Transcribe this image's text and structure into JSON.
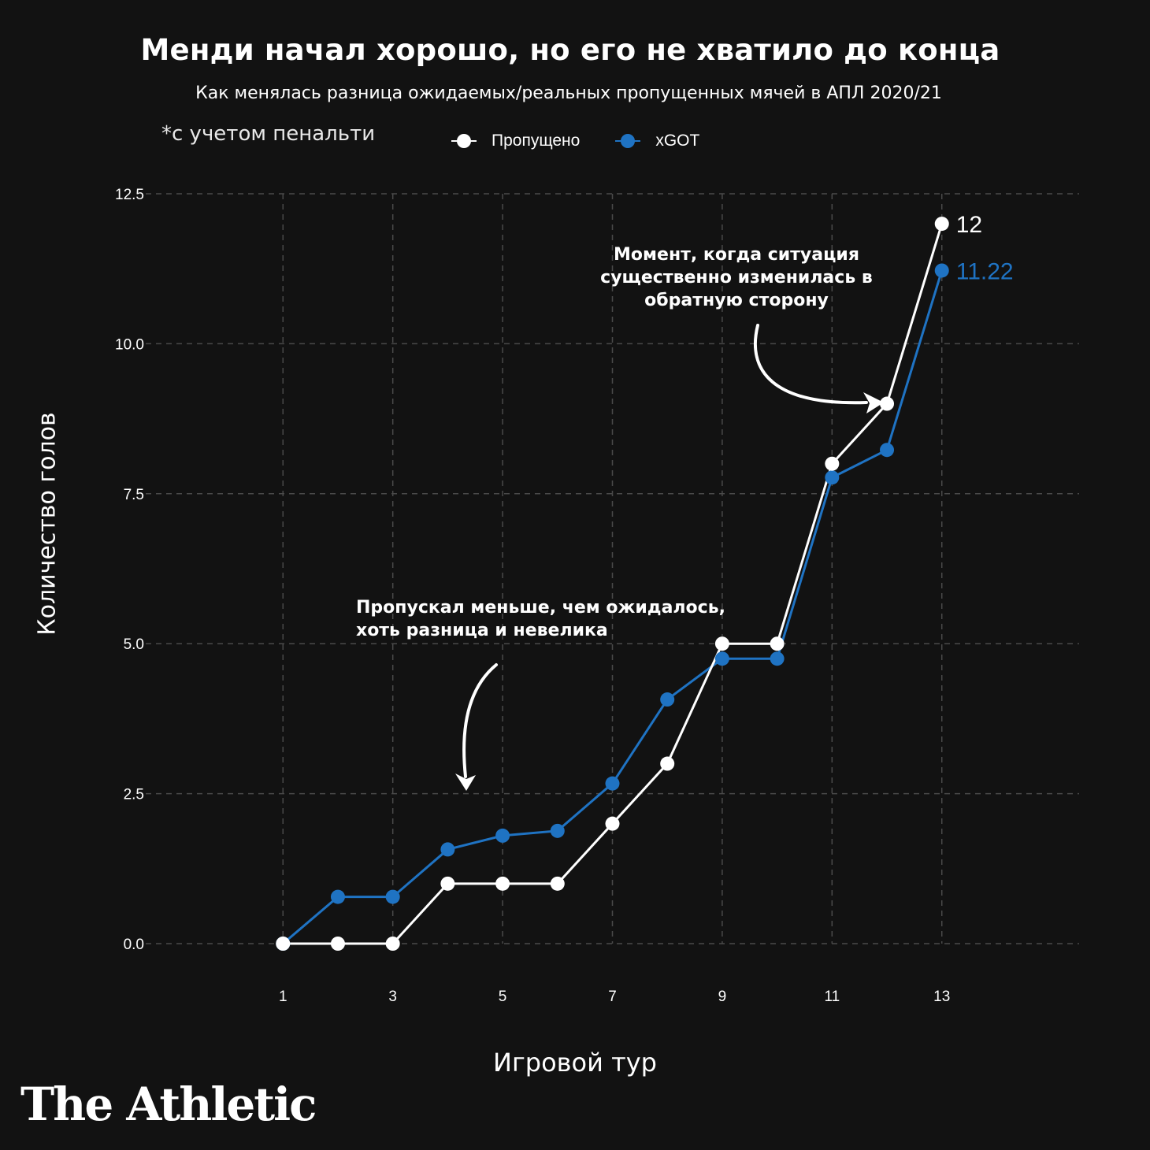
{
  "chart_data": {
    "type": "line",
    "title": "Менди начал хорошо, но его не хватило до конца",
    "subtitle": "Как менялась разница ожидаемых/реальных пропущенных мячей в АПЛ 2020/21",
    "note": "*с учетом пенальти",
    "xlabel": "Игровой тур",
    "ylabel": "Количество голов",
    "x": [
      1,
      2,
      3,
      4,
      5,
      6,
      7,
      8,
      9,
      10,
      11,
      12,
      13
    ],
    "xticks": [
      "1",
      "3",
      "5",
      "7",
      "9",
      "11",
      "13"
    ],
    "xlim": [
      -1.5,
      15.5
    ],
    "yticks": [
      "0.0",
      "2.5",
      "5.0",
      "7.5",
      "10.0",
      "12.5"
    ],
    "ylim": [
      0,
      12.5
    ],
    "grid": true,
    "legend_position": "top",
    "series": [
      {
        "name": "Пропущено",
        "color": "#ffffff",
        "values": [
          0,
          0,
          0,
          1,
          1,
          1,
          2,
          3,
          5,
          5,
          8,
          9,
          12
        ],
        "end_label": "12"
      },
      {
        "name": "xGOT",
        "color": "#1f73c3",
        "values": [
          0,
          0.78,
          0.78,
          1.57,
          1.8,
          1.88,
          2.67,
          4.07,
          4.75,
          4.75,
          7.77,
          8.23,
          11.22
        ],
        "end_label": "11.22"
      }
    ],
    "annotations": [
      "Момент, когда ситуация существенно изменилась в обратную сторону",
      "Пропускал меньше, чем ожидалось, хоть разница и невелика"
    ]
  },
  "brand": {
    "name": "The Athletic"
  },
  "colors": {
    "background": "#121212",
    "grid": "#4a4a4a",
    "conceded": "#ffffff",
    "xgot": "#1f73c3"
  }
}
